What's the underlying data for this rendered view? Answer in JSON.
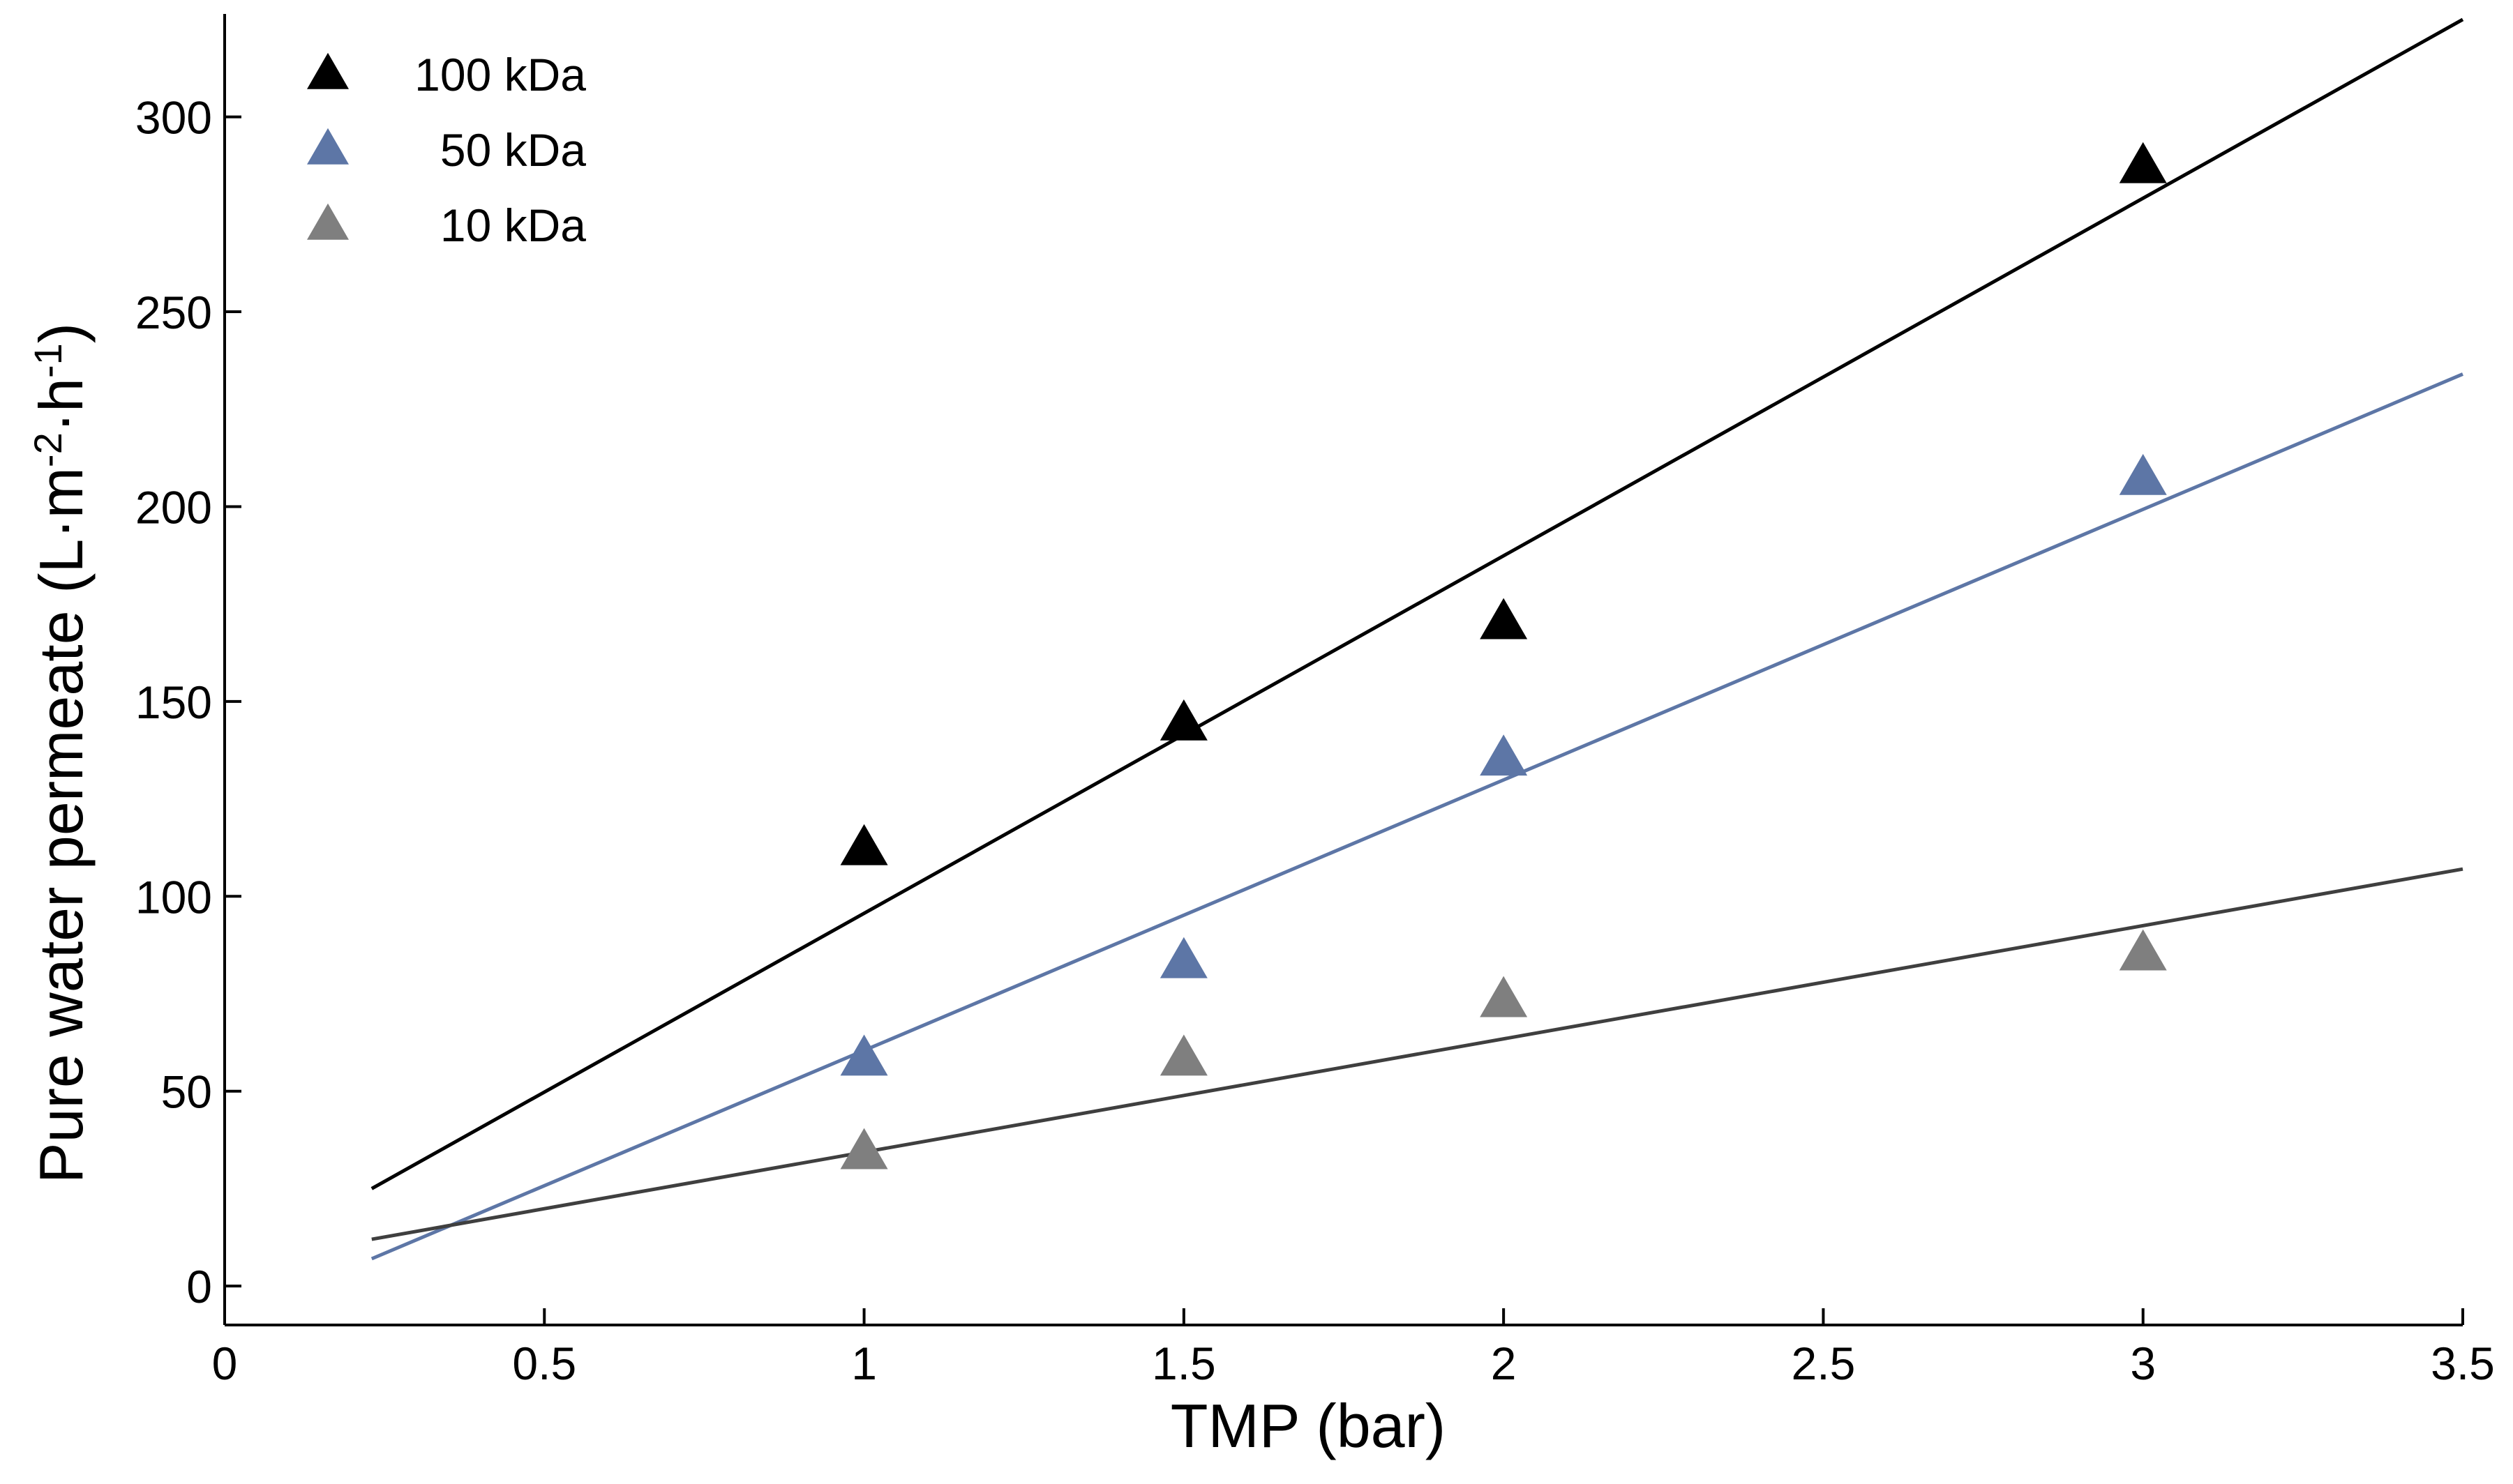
{
  "chart_data": {
    "type": "scatter",
    "title": "",
    "xlabel": "TMP (bar)",
    "ylabel": {
      "base": "Pure water permeate (L·m",
      "exp1": "-2",
      "mid": "·h",
      "exp2": "-1",
      "end": ")"
    },
    "xlim": [
      0,
      3.5
    ],
    "ylim": [
      -10,
      330
    ],
    "xticks": [
      0,
      0.5,
      1,
      1.5,
      2,
      2.5,
      3,
      3.5
    ],
    "xtick_labels": [
      "0",
      "0.5",
      "1",
      "1.5",
      "2",
      "2.5",
      "3",
      "3.5"
    ],
    "yticks": [
      0,
      50,
      100,
      150,
      200,
      250,
      300
    ],
    "ytick_labels": [
      "0",
      "50",
      "100",
      "150",
      "200",
      "250",
      "300"
    ],
    "grid": false,
    "legend_position": "top-left",
    "series": [
      {
        "name": "100 kDa",
        "color": "#000000",
        "marker": "triangle",
        "x": [
          1,
          1.5,
          2,
          3
        ],
        "y": [
          112,
          144,
          170,
          287
        ],
        "fit": {
          "x": [
            0.23,
            3.5
          ],
          "y": [
            25,
            325
          ],
          "color": "#000000"
        }
      },
      {
        "name": "50 kDa",
        "color": "#5d76a6",
        "marker": "triangle",
        "x": [
          1,
          1.5,
          2,
          3
        ],
        "y": [
          58,
          83,
          135,
          207
        ],
        "fit": {
          "x": [
            0.23,
            3.5
          ],
          "y": [
            7,
            234
          ],
          "color": "#5d76a6"
        }
      },
      {
        "name": "10 kDa",
        "color": "#7f7f7f",
        "marker": "triangle",
        "x": [
          1,
          1.5,
          2,
          3
        ],
        "y": [
          34,
          58,
          73,
          85
        ],
        "fit": {
          "x": [
            0.23,
            3.5
          ],
          "y": [
            12,
            107
          ],
          "color": "#3f3f3f"
        }
      }
    ]
  }
}
